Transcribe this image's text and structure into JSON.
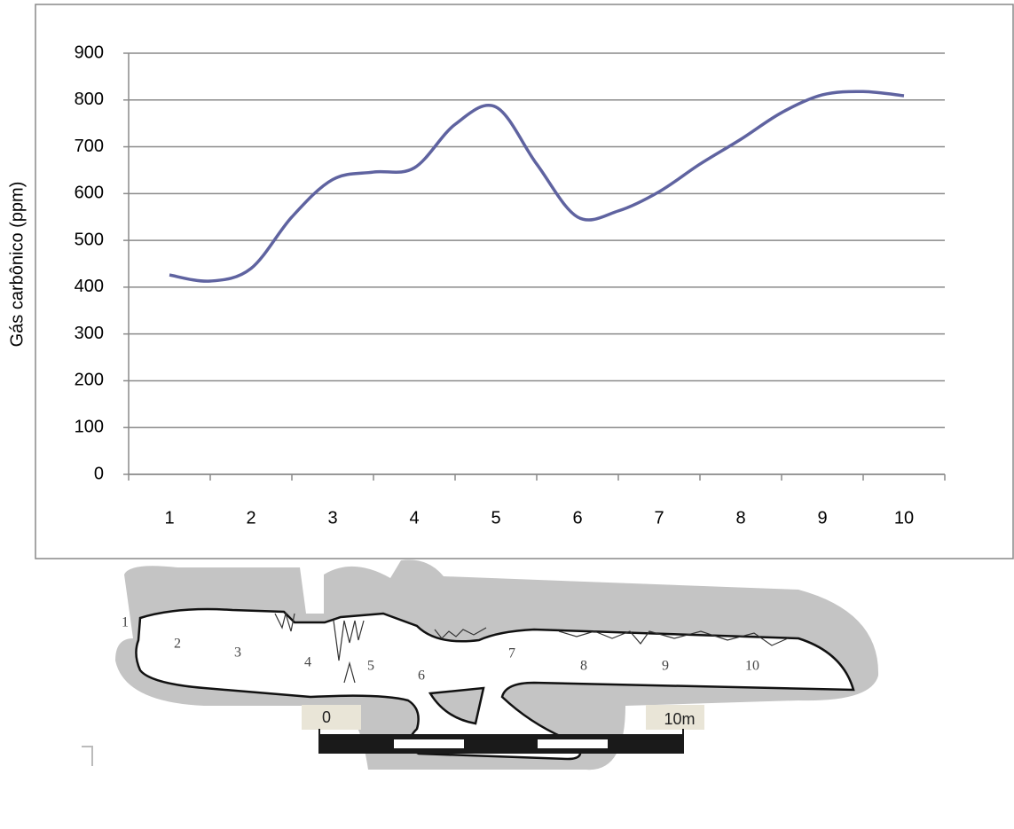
{
  "chart_data": {
    "type": "line",
    "y_label": "Gás carbônico (ppm)",
    "x": [
      1,
      1.5,
      2,
      2.5,
      3,
      3.5,
      4,
      4.5,
      5,
      5.5,
      6,
      6.5,
      7,
      7.5,
      8,
      8.5,
      9,
      9.5,
      10
    ],
    "values": [
      426,
      413,
      440,
      550,
      630,
      646,
      655,
      748,
      785,
      663,
      550,
      563,
      604,
      663,
      716,
      773,
      811,
      818,
      809
    ],
    "color": "#5f63a0",
    "xlim": [
      0.5,
      10.5
    ],
    "xticks": [
      1,
      2,
      3,
      4,
      5,
      6,
      7,
      8,
      9,
      10
    ],
    "ylim": [
      0,
      900
    ],
    "yticks": [
      0,
      100,
      200,
      300,
      400,
      500,
      600,
      700,
      800,
      900
    ],
    "grid": true
  },
  "diagram": {
    "labels": [
      "1",
      "2",
      "3",
      "4",
      "5",
      "6",
      "7",
      "8",
      "9",
      "10"
    ],
    "scale": [
      "0",
      "10m"
    ]
  }
}
